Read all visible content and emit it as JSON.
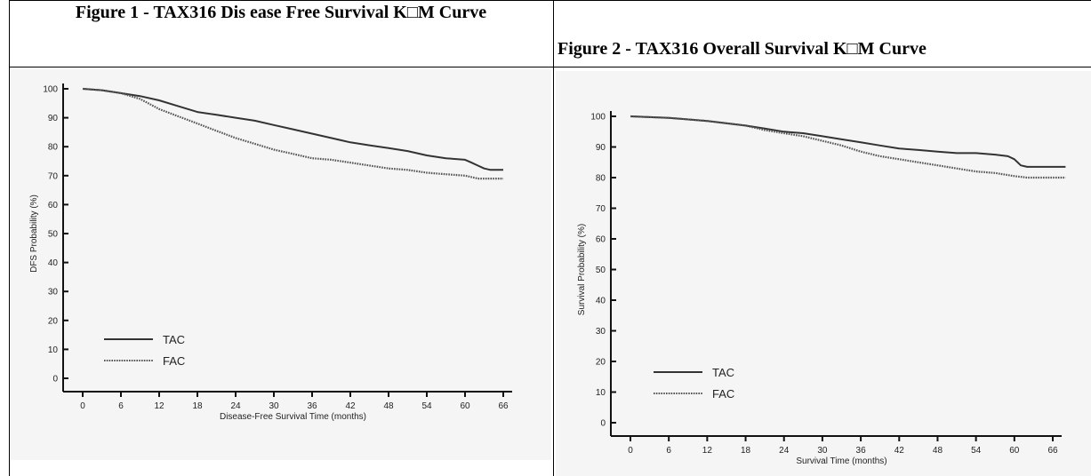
{
  "figures": [
    {
      "title": "Figure 1 - TAX316 Dis ease Free Survival K□M Curve"
    },
    {
      "title": "Figure 2 - TAX316 Overall Survival K□M Curve"
    }
  ],
  "chart_data": [
    {
      "type": "line",
      "title": "Figure 1 - TAX316 Dis ease Free Survival K□M Curve",
      "xlabel": "Disease-Free Survival Time (months)",
      "ylabel": "DFS Probability (%)",
      "xlim": [
        0,
        66
      ],
      "ylim": [
        0,
        100
      ],
      "xticks": [
        0,
        6,
        12,
        18,
        24,
        30,
        36,
        42,
        48,
        54,
        60,
        66
      ],
      "yticks": [
        0,
        10,
        20,
        30,
        40,
        50,
        60,
        70,
        80,
        90,
        100
      ],
      "legend": "bottom-left",
      "grid": false,
      "series": [
        {
          "name": "TAC",
          "style": "solid",
          "color": "#333333",
          "x": [
            0,
            3,
            6,
            9,
            12,
            15,
            18,
            21,
            24,
            27,
            30,
            33,
            36,
            39,
            42,
            45,
            48,
            51,
            54,
            57,
            60,
            61,
            62,
            63,
            64,
            65,
            66
          ],
          "y": [
            100,
            99.5,
            98.5,
            97.5,
            96,
            94,
            92,
            91,
            90,
            89,
            87.5,
            86,
            84.5,
            83,
            81.5,
            80.5,
            79.5,
            78.5,
            77,
            76,
            75.5,
            74.5,
            73.5,
            72.5,
            72,
            72,
            72
          ]
        },
        {
          "name": "FAC",
          "style": "dotted",
          "color": "#555555",
          "x": [
            0,
            3,
            6,
            9,
            12,
            15,
            18,
            21,
            24,
            27,
            30,
            33,
            36,
            39,
            42,
            45,
            48,
            51,
            54,
            57,
            60,
            61,
            62,
            63,
            64,
            65,
            66
          ],
          "y": [
            100,
            99.5,
            98.5,
            96.5,
            93,
            90.5,
            88,
            85.5,
            83,
            81,
            79,
            77.5,
            76,
            75.5,
            74.5,
            73.5,
            72.5,
            72,
            71,
            70.5,
            70,
            69.5,
            69,
            69,
            69,
            69,
            69
          ]
        }
      ]
    },
    {
      "type": "line",
      "title": "Figure 2 - TAX316 Overall Survival K□M Curve",
      "xlabel": "Survival Time (months)",
      "ylabel": "Survival Probability (%)",
      "xlim": [
        0,
        66
      ],
      "ylim": [
        0,
        100
      ],
      "xticks": [
        0,
        6,
        12,
        18,
        24,
        30,
        36,
        42,
        48,
        54,
        60,
        66
      ],
      "yticks": [
        0,
        10,
        20,
        30,
        40,
        50,
        60,
        70,
        80,
        90,
        100
      ],
      "legend": "bottom-left",
      "grid": false,
      "series": [
        {
          "name": "TAC",
          "style": "solid",
          "color": "#333333",
          "x": [
            0,
            6,
            12,
            18,
            21,
            24,
            27,
            30,
            33,
            36,
            39,
            42,
            45,
            48,
            51,
            54,
            57,
            59,
            60,
            61,
            62,
            64,
            66,
            68
          ],
          "y": [
            100,
            99.5,
            98.5,
            97,
            96,
            95,
            94.5,
            93.5,
            92.5,
            91.5,
            90.5,
            89.5,
            89,
            88.5,
            88,
            88,
            87.5,
            87,
            86,
            84,
            83.5,
            83.5,
            83.5,
            83.5
          ]
        },
        {
          "name": "FAC",
          "style": "dotted",
          "color": "#555555",
          "x": [
            0,
            6,
            12,
            18,
            21,
            24,
            27,
            30,
            33,
            36,
            39,
            42,
            45,
            48,
            51,
            54,
            57,
            60,
            62,
            64,
            66,
            68
          ],
          "y": [
            100,
            99.5,
            98.5,
            97,
            95.5,
            94.5,
            93.5,
            92,
            90.5,
            88.5,
            87,
            86,
            85,
            84,
            83,
            82,
            81.5,
            80.5,
            80,
            80,
            80,
            80
          ]
        }
      ]
    }
  ]
}
